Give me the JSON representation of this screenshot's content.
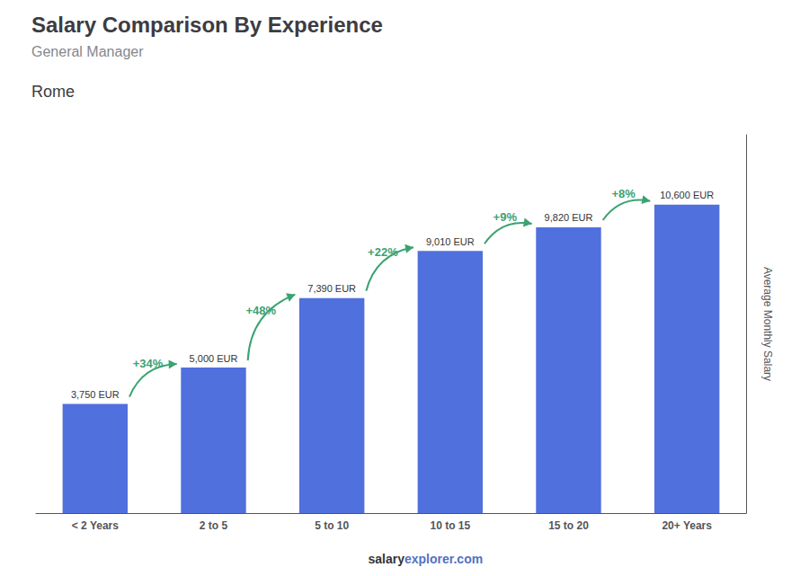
{
  "chart_data": {
    "type": "bar",
    "title": "Salary Comparison By Experience",
    "subtitle": "General Manager",
    "city": "Rome",
    "categories": [
      "< 2 Years",
      "2 to 5",
      "5 to 10",
      "10 to 15",
      "15 to 20",
      "20+ Years"
    ],
    "values": [
      3750,
      5000,
      7390,
      9010,
      9820,
      10600
    ],
    "value_labels": [
      "3,750 EUR",
      "5,000 EUR",
      "7,390 EUR",
      "9,010 EUR",
      "9,820 EUR",
      "10,600 EUR"
    ],
    "data_labels": true,
    "annotations": [
      "+34%",
      "+48%",
      "+22%",
      "+9%",
      "+8%"
    ],
    "ylabel": "Average Monthly Salary",
    "footer": [
      "salary",
      "explorer.com"
    ],
    "ylim": [
      0,
      13000
    ],
    "grid": false,
    "tick_labels": "x"
  }
}
